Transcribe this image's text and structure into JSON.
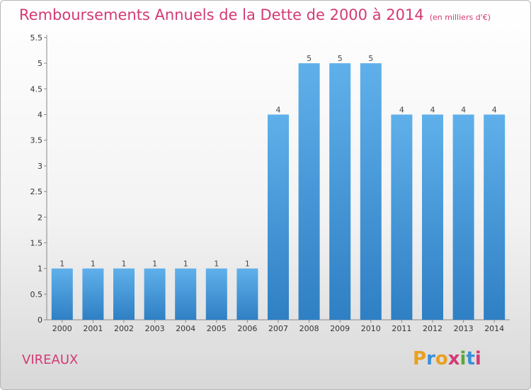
{
  "title": "Remboursements Annuels de la Dette de 2000 à 2014",
  "subtitle": "(en milliers d'€)",
  "commune": "VIREAUX",
  "logo": {
    "letters": [
      "P",
      "r",
      "o",
      "x",
      "i",
      "t",
      "i"
    ],
    "colors": [
      "#e8a020",
      "#3a8fd8",
      "#e8a020",
      "#d43a74",
      "#5aa83a",
      "#3a8fd8",
      "#d43a74"
    ]
  },
  "colors": {
    "bar": "#4a9fdf",
    "title": "#d43a74"
  },
  "chart_data": {
    "type": "bar",
    "categories": [
      "2000",
      "2001",
      "2002",
      "2003",
      "2004",
      "2005",
      "2006",
      "2007",
      "2008",
      "2009",
      "2010",
      "2011",
      "2012",
      "2013",
      "2014"
    ],
    "values": [
      1,
      1,
      1,
      1,
      1,
      1,
      1,
      4,
      5,
      5,
      5,
      4,
      4,
      4,
      4
    ],
    "data_labels": [
      "1",
      "1",
      "1",
      "1",
      "1",
      "1",
      "1",
      "4",
      "5",
      "5",
      "5",
      "4",
      "4",
      "4",
      "4"
    ],
    "yticks": [
      "0",
      "0.5",
      "1",
      "1.5",
      "2",
      "2.5",
      "3",
      "3.5",
      "4",
      "4.5",
      "5",
      "5.5"
    ],
    "ylim": [
      0,
      5.5
    ],
    "grid": false
  }
}
